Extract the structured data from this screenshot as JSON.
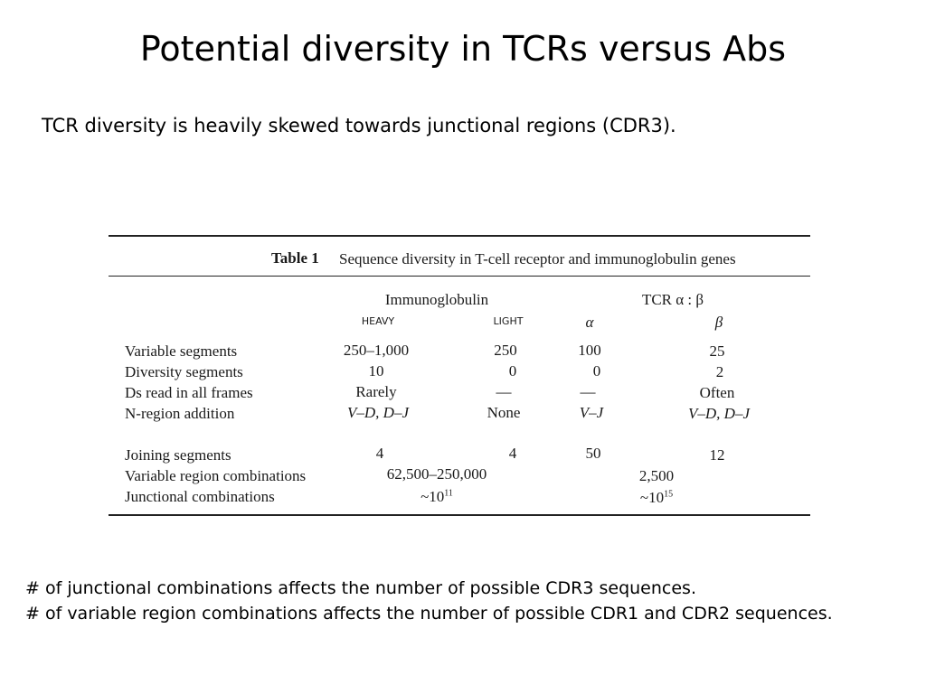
{
  "slide": {
    "title": "Potential diversity in TCRs versus Abs",
    "subtitle": "TCR diversity is heavily skewed towards junctional regions (CDR3).",
    "notes": [
      "# of junctional combinations affects the number of possible CDR3 sequences.",
      "# of variable region combinations affects the number of possible CDR1 and CDR2 sequences."
    ]
  },
  "table": {
    "caption_label": "Table 1",
    "caption_text": "Sequence diversity in T-cell receptor and immunoglobulin genes",
    "group_headers": {
      "ig": "Immunoglobulin",
      "tcr": "TCR α : β"
    },
    "sub_headers": {
      "heavy": "HEAVY",
      "light": "LIGHT",
      "alpha": "α",
      "beta": "β"
    },
    "rows": [
      {
        "label": "Variable segments",
        "heavy": "250–1,000",
        "light": "250",
        "alpha": "100",
        "beta": "25"
      },
      {
        "label": "Diversity segments",
        "heavy": "10",
        "light": "0",
        "alpha": "0",
        "beta": "2"
      },
      {
        "label": "Ds read in all frames",
        "heavy": "Rarely",
        "light": "—",
        "alpha": "—",
        "beta": "Often"
      },
      {
        "label": "N-region addition",
        "heavy": "V–D, D–J",
        "light": "None",
        "alpha": "V–J",
        "beta": "V–D, D–J"
      },
      {
        "label": "Joining segments",
        "heavy": "4",
        "light": "4",
        "alpha": "50",
        "beta": "12"
      }
    ],
    "combo_rows": [
      {
        "label": "Variable region combinations",
        "ig": "62,500–250,000",
        "tcr": "2,500"
      },
      {
        "label": "Junctional combinations",
        "ig_base": "~10",
        "ig_exp": "11",
        "tcr_base": "~10",
        "tcr_exp": "15"
      }
    ]
  }
}
